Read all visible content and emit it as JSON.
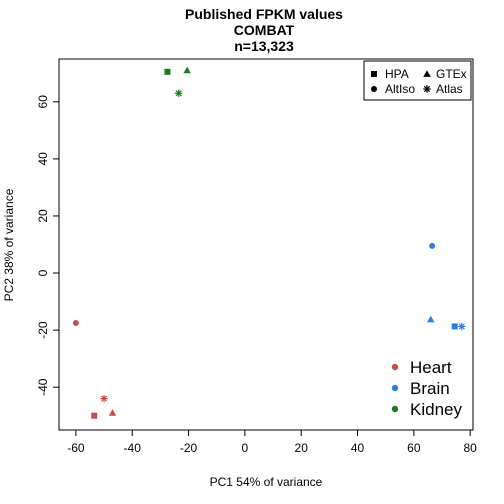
{
  "chart_data": {
    "type": "scatter",
    "title": [
      "Published FPKM values",
      "COMBAT",
      "n=13,323"
    ],
    "xlabel": "PC1 54% of variance",
    "ylabel": "PC2 38% of variance",
    "xlim": [
      -66,
      81
    ],
    "ylim": [
      -55,
      75
    ],
    "xticks": [
      -60,
      -40,
      -20,
      0,
      20,
      40,
      60,
      80
    ],
    "yticks": [
      -40,
      -20,
      0,
      20,
      40,
      60
    ],
    "tissue_legend": [
      {
        "name": "Heart",
        "color": "#c94c53"
      },
      {
        "name": "Brain",
        "color": "#2f7de1"
      },
      {
        "name": "Kidney",
        "color": "#1e7a1e"
      }
    ],
    "source_legend": [
      {
        "name": "HPA",
        "shape": "square"
      },
      {
        "name": "GTEx",
        "shape": "triangle"
      },
      {
        "name": "AltIso",
        "shape": "circle"
      },
      {
        "name": "Atlas",
        "shape": "asterisk"
      }
    ],
    "points": [
      {
        "tissue": "Heart",
        "source": "HPA",
        "x": -53.5,
        "y": -50
      },
      {
        "tissue": "Heart",
        "source": "GTEx",
        "x": -47,
        "y": -49
      },
      {
        "tissue": "Heart",
        "source": "AltIso",
        "x": -60,
        "y": -17.5
      },
      {
        "tissue": "Heart",
        "source": "Atlas",
        "x": -50,
        "y": -44
      },
      {
        "tissue": "Brain",
        "source": "HPA",
        "x": 74.5,
        "y": -18.7
      },
      {
        "tissue": "Brain",
        "source": "GTEx",
        "x": 66,
        "y": -16.3
      },
      {
        "tissue": "Brain",
        "source": "AltIso",
        "x": 66.5,
        "y": 9.5
      },
      {
        "tissue": "Brain",
        "source": "Atlas",
        "x": 77,
        "y": -18.7
      },
      {
        "tissue": "Kidney",
        "source": "HPA",
        "x": -27.5,
        "y": 70.5
      },
      {
        "tissue": "Kidney",
        "source": "GTEx",
        "x": -20.5,
        "y": 71
      },
      {
        "tissue": "Kidney",
        "source": "Atlas",
        "x": -23.5,
        "y": 63
      }
    ]
  }
}
